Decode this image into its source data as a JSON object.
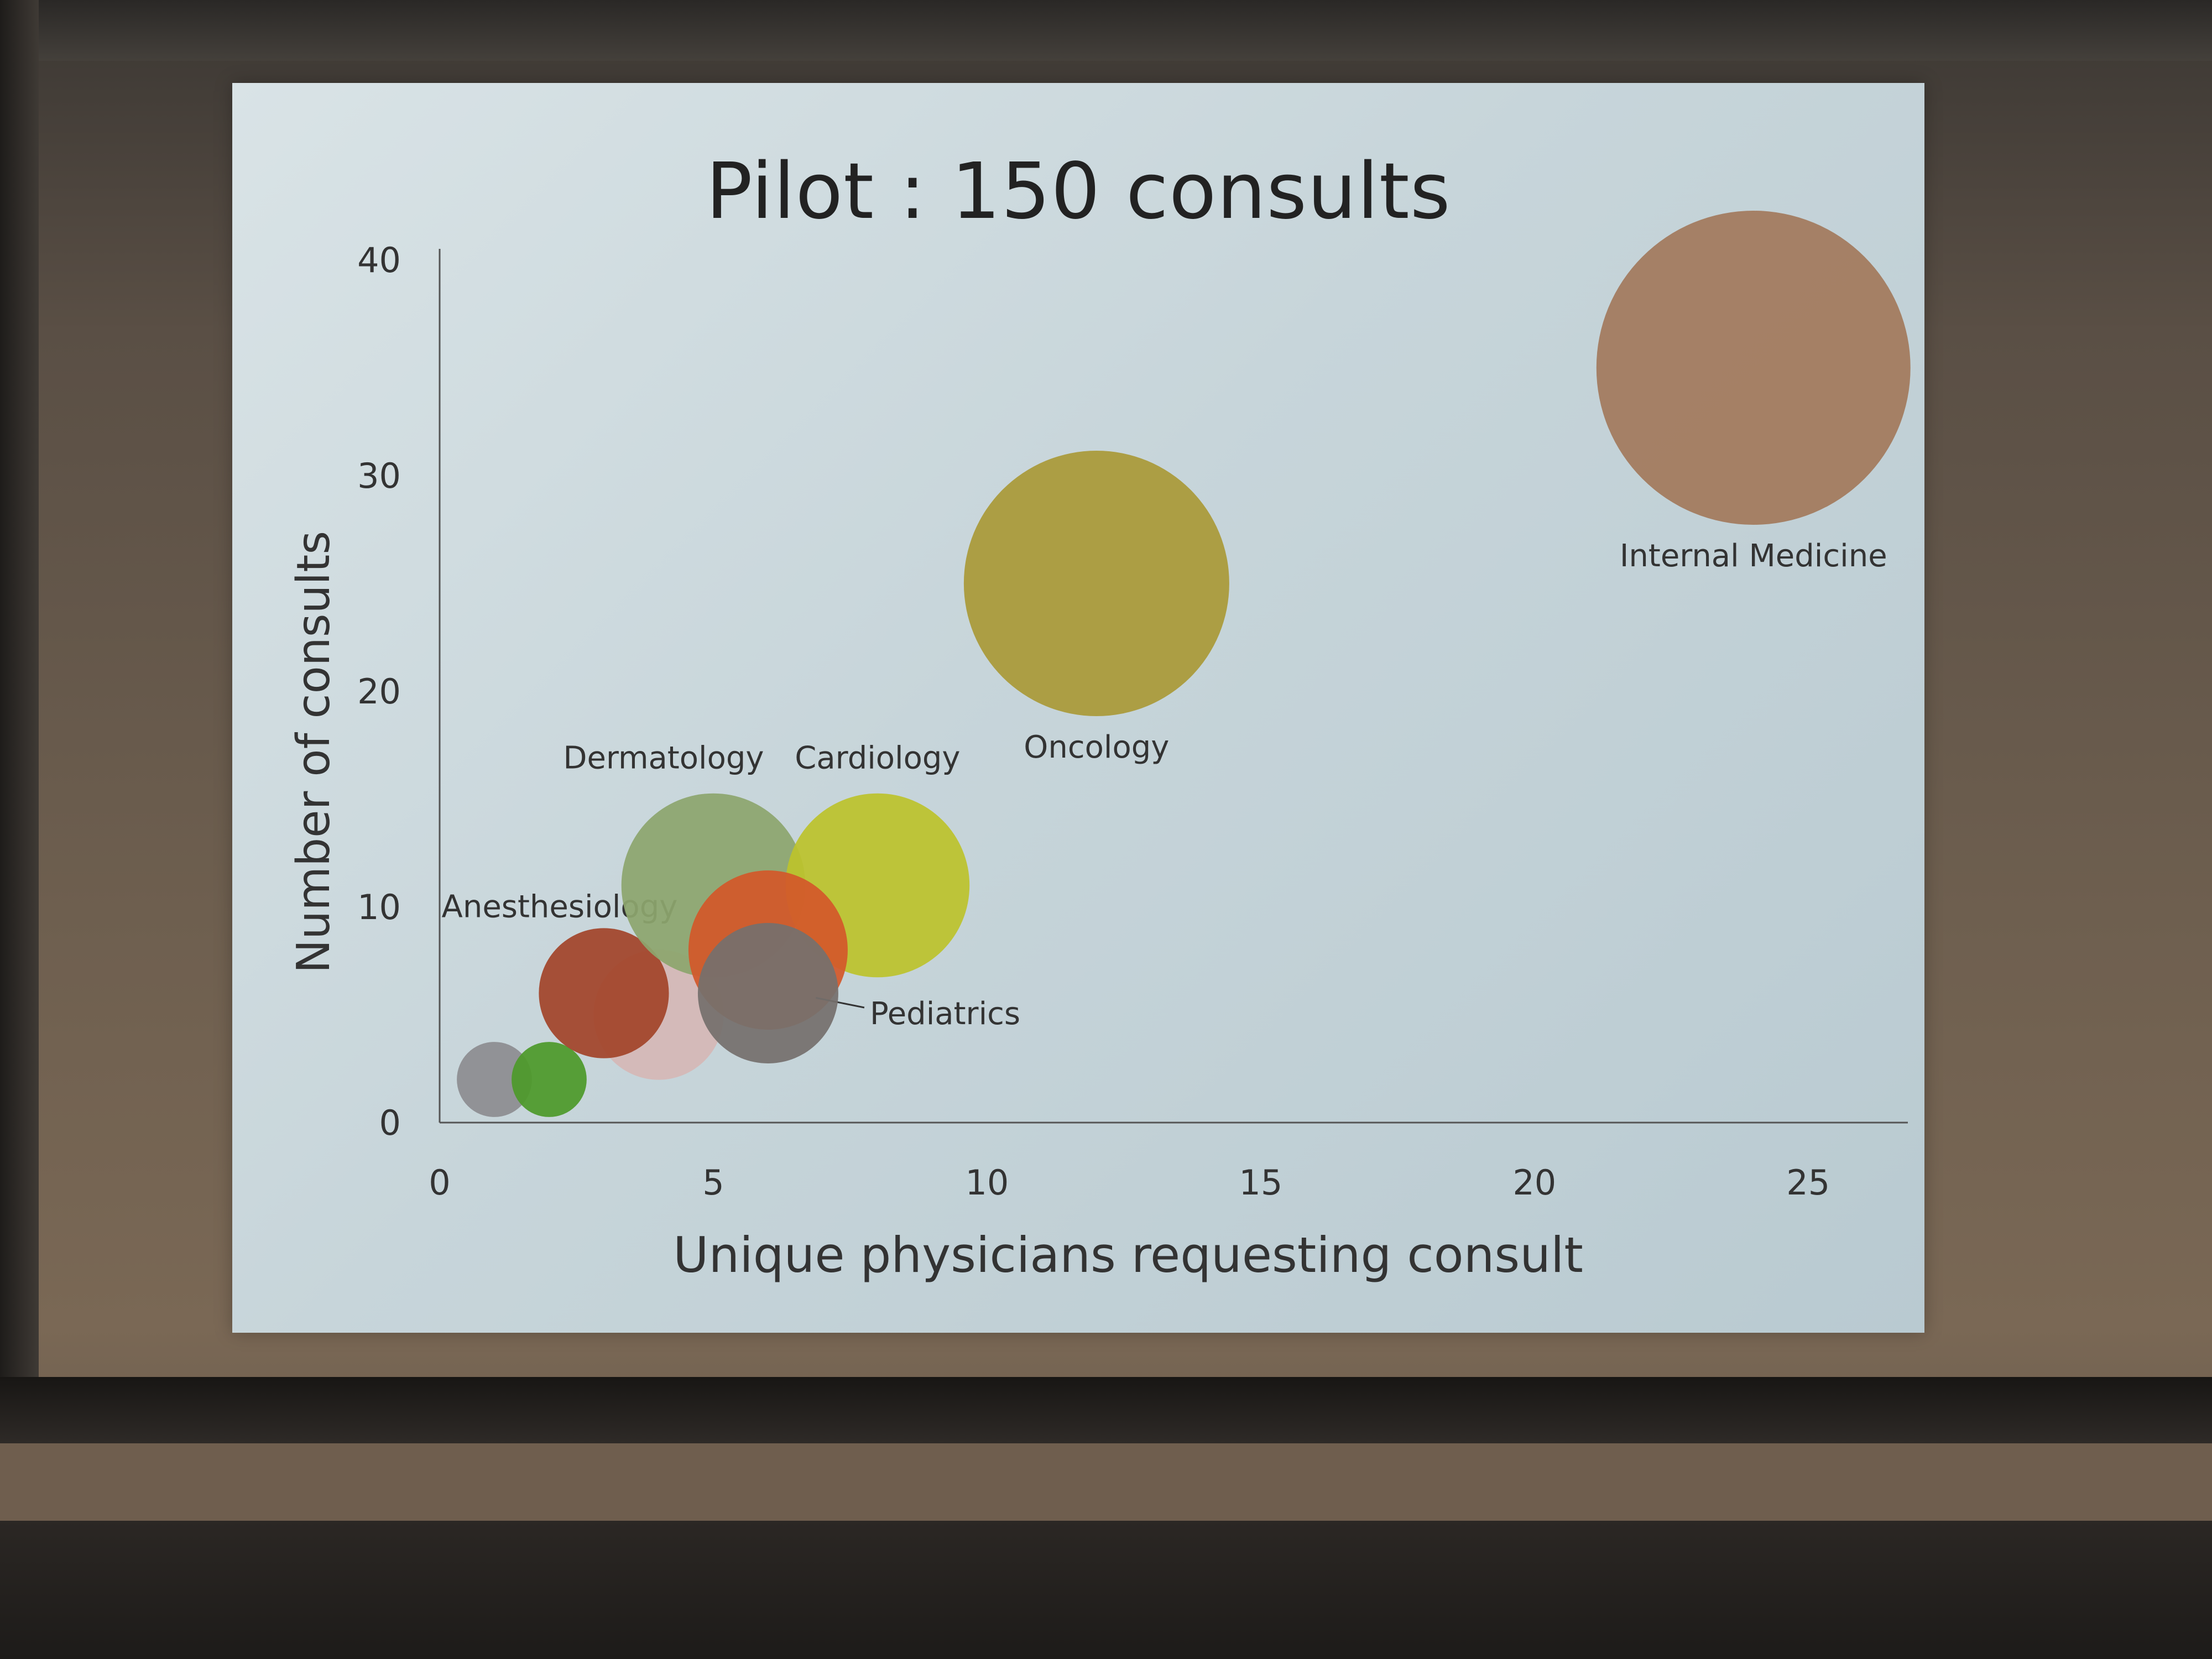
{
  "slide": {
    "title": "Pilot : 150 consults"
  },
  "chart_data": {
    "type": "scatter",
    "title": "Pilot : 150 consults",
    "xlabel": "Unique physicians requesting consult",
    "ylabel": "Number of consults",
    "xlim": [
      0,
      27
    ],
    "ylim": [
      0,
      40
    ],
    "xticks": [
      "0",
      "5",
      "10",
      "15",
      "20",
      "25"
    ],
    "yticks": [
      "0",
      "10",
      "20",
      "30",
      "40"
    ],
    "grid": false,
    "bubbles": [
      {
        "label": "",
        "x": 1,
        "y": 2,
        "size": 2,
        "color": "#8d8d90"
      },
      {
        "label": "",
        "x": 2,
        "y": 2,
        "size": 2,
        "color": "#4e9a2a"
      },
      {
        "label": "",
        "x": 4,
        "y": 5,
        "size": 6,
        "color": "#d5b8b6"
      },
      {
        "label": "Anesthesiology",
        "x": 3,
        "y": 6,
        "size": 6,
        "color": "#a3452a"
      },
      {
        "label": "Dermatology",
        "x": 5,
        "y": 11,
        "size": 12,
        "color": "#8da66e"
      },
      {
        "label": "Cardiology",
        "x": 8,
        "y": 11,
        "size": 12,
        "color": "#bcc32c"
      },
      {
        "label": "Pediatrics",
        "x": 6,
        "y": 8,
        "size": 9,
        "color": "#d3582a"
      },
      {
        "label": "",
        "x": 6,
        "y": 6,
        "size": 7,
        "color": "#75706d"
      },
      {
        "label": "Oncology",
        "x": 12,
        "y": 25,
        "size": 25,
        "color": "#aa9a38"
      },
      {
        "label": "Internal Medicine",
        "x": 24,
        "y": 35,
        "size": 35,
        "color": "#a27a5d"
      }
    ]
  }
}
